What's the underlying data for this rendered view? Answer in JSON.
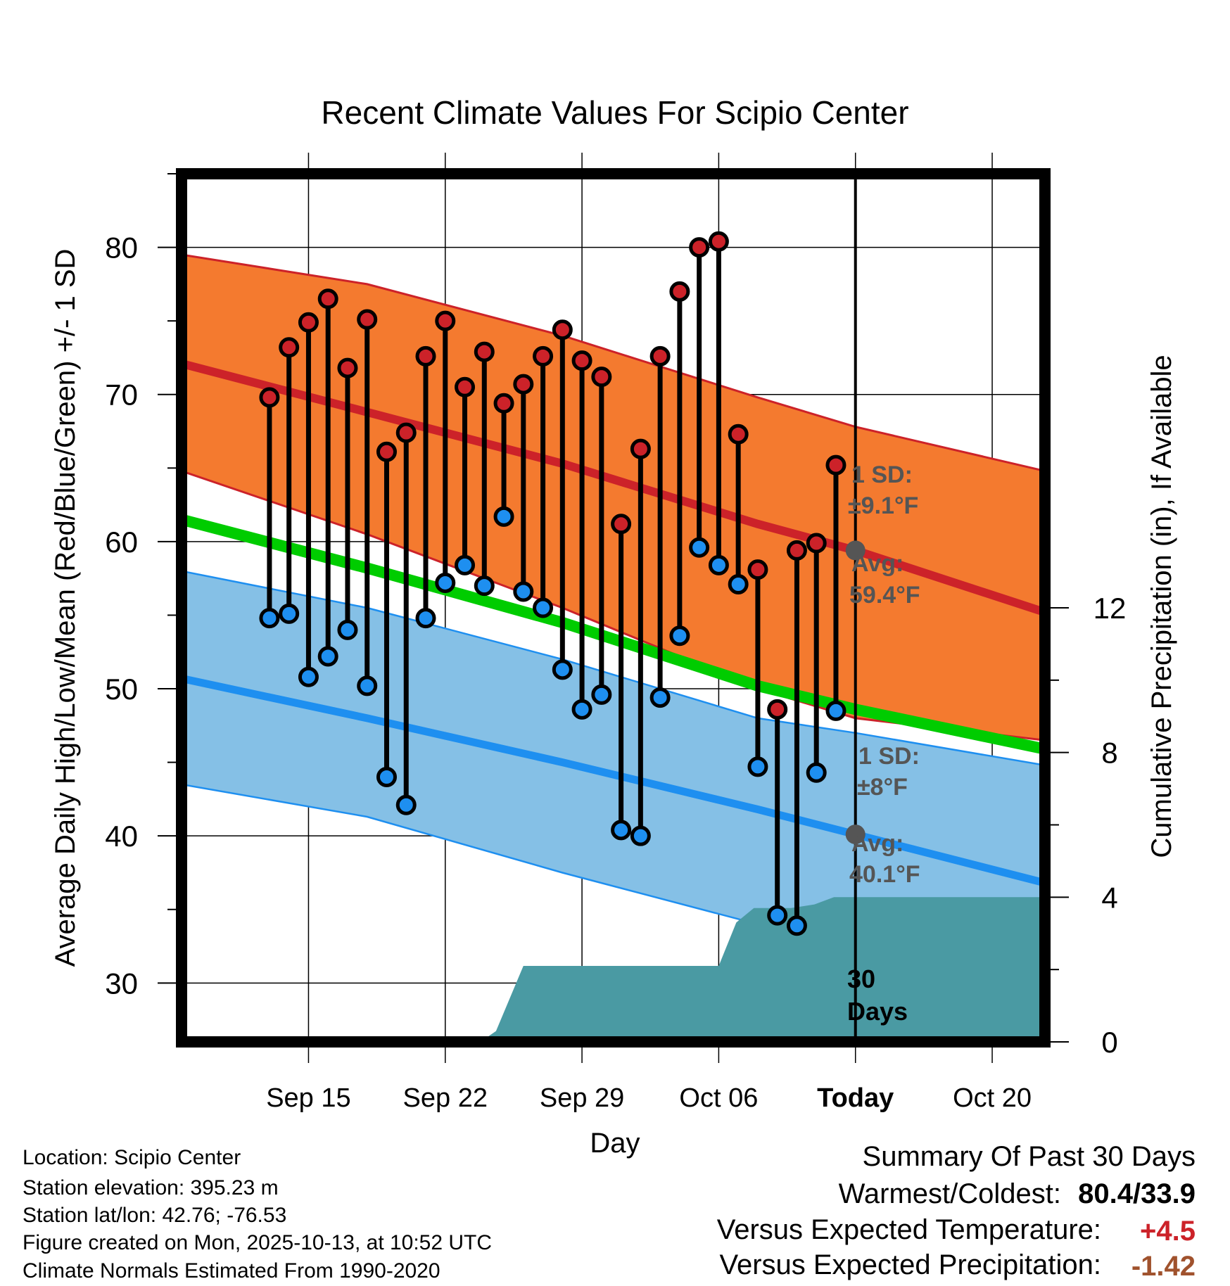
{
  "title": "Recent Climate Values For Scipio Center",
  "colors": {
    "high_band": "#f47a2f",
    "high_line": "#cc2229",
    "low_band": "#85c0e6",
    "low_line": "#1e8ff0",
    "mean_line": "#00cc00",
    "precip": "#4a9aa3",
    "high_marker": "#cc2229",
    "low_marker": "#1e8ff0",
    "positive": "#cc2229",
    "precip_value": "#a0522d",
    "annotation": "#555555"
  },
  "chart_data": {
    "type": "line",
    "title": "Recent Climate Values For Scipio Center",
    "xlabel": "Day",
    "ylabel": "Average Daily High/Low/Mean (Red/Blue/Green) +/- 1 SD",
    "y2label": "Cumulative Precipitation (in), If Available",
    "ylim": [
      26,
      85
    ],
    "y2lim": [
      0,
      24
    ],
    "xlim": [
      -34.5,
      9.7
    ],
    "yticks": [
      30,
      40,
      50,
      60,
      70,
      80
    ],
    "y2ticks": [
      0,
      4,
      8,
      12
    ],
    "xticks": [
      {
        "day": -28,
        "label": "Sep 15"
      },
      {
        "day": -21,
        "label": "Sep 22"
      },
      {
        "day": -14,
        "label": "Sep 29"
      },
      {
        "day": -7,
        "label": "Oct 06"
      },
      {
        "day": 0,
        "label": "Today"
      },
      {
        "day": 7,
        "label": "Oct 20"
      }
    ],
    "today_marker_day": 0,
    "normals": {
      "days": [
        -34.5,
        -25,
        -15,
        -5,
        0,
        9.7
      ],
      "high_avg": [
        72.1,
        68.8,
        65.3,
        61.2,
        59.4,
        55.2
      ],
      "high_upper": [
        79.5,
        77.5,
        74.0,
        69.8,
        67.8,
        64.8
      ],
      "high_lower": [
        64.8,
        60.5,
        55.5,
        50.0,
        48.0,
        46.5
      ],
      "mean": [
        61.5,
        58.2,
        54.5,
        50.2,
        48.6,
        45.9
      ],
      "low_avg": [
        50.7,
        48.0,
        45.0,
        41.8,
        40.1,
        36.8
      ],
      "low_upper": [
        58.0,
        55.5,
        52.0,
        48.0,
        47.0,
        44.8
      ],
      "low_lower": [
        43.5,
        41.3,
        37.5,
        34.0,
        32.3,
        30.8
      ]
    },
    "observations": {
      "days": [
        -30,
        -29,
        -28,
        -27,
        -26,
        -25,
        -24,
        -23,
        -22,
        -21,
        -20,
        -19,
        -18,
        -17,
        -16,
        -15,
        -14,
        -13,
        -12,
        -11,
        -10,
        -9,
        -8,
        -7,
        -6,
        -5,
        -4,
        -3,
        -2,
        -1
      ],
      "high": [
        69.8,
        73.2,
        74.9,
        76.5,
        71.8,
        75.1,
        66.1,
        67.4,
        72.6,
        75.0,
        70.5,
        72.9,
        69.4,
        70.7,
        72.6,
        74.4,
        72.3,
        71.2,
        61.2,
        66.3,
        72.6,
        77.0,
        80.0,
        80.4,
        67.3,
        58.1,
        48.6,
        59.4,
        59.9,
        65.2
      ],
      "low": [
        54.8,
        55.1,
        50.8,
        52.2,
        54.0,
        50.2,
        44.0,
        42.1,
        54.8,
        57.2,
        58.4,
        57.0,
        61.7,
        56.6,
        55.5,
        51.3,
        48.6,
        49.6,
        40.4,
        40.0,
        49.4,
        53.6,
        59.6,
        58.4,
        57.1,
        44.7,
        34.6,
        33.9,
        44.3,
        48.5
      ]
    },
    "precipitation": {
      "days": [
        -34.5,
        -19.2,
        -18.4,
        -17.0,
        -7.0,
        -6.1,
        -5.2,
        -3.3,
        -2.1,
        -1.1,
        9.7
      ],
      "cumulative": [
        0.0,
        0.0,
        0.3,
        2.1,
        2.1,
        3.3,
        3.7,
        3.7,
        3.8,
        4.0,
        4.0
      ]
    },
    "annotations": {
      "high_sd": "1 SD:",
      "high_sd_value": "±9.1",
      "high_avg": "Avg:",
      "high_avg_value": "59.4",
      "low_sd": "1 SD:",
      "low_sd_value": "±8",
      "low_avg": "Avg:",
      "low_avg_value": "40.1",
      "unit": "°F",
      "period": "30",
      "period_unit": "Days"
    }
  },
  "info": {
    "location": "Location: Scipio Center",
    "elevation": "Station elevation: 395.23 m",
    "latlon": "Station lat/lon: 42.76; -76.53",
    "created": "Figure created on Mon, 2025-10-13, at 10:52 UTC",
    "normals": "Climate Normals Estimated From 1990-2020"
  },
  "summary": {
    "title": "Summary Of Past 30 Days",
    "warm_cold_label": "Warmest/Coldest:",
    "warm_cold_value": "80.4/33.9",
    "temp_label": "Versus Expected Temperature:",
    "temp_value": "+4.5",
    "precip_label": "Versus Expected Precipitation:",
    "precip_value": "-1.42"
  }
}
